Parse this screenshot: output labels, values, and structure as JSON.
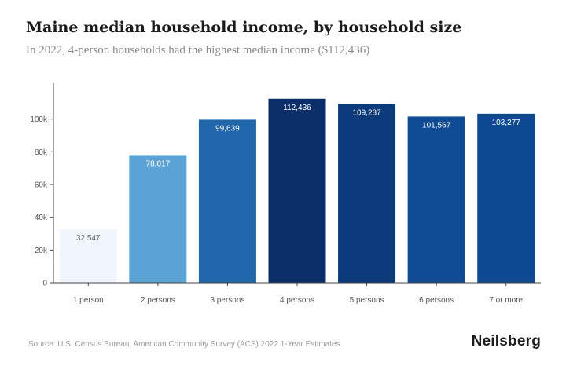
{
  "title": "Maine median household income, by household size",
  "subtitle": "In 2022, 4-person households had the highest median income ($112,436)",
  "source": "Source: U.S. Census Bureau, American Community Survey (ACS) 2022 1-Year Estimates",
  "brand": "Neilsberg",
  "chart_data": {
    "type": "bar",
    "categories": [
      "1 person",
      "2 persons",
      "3 persons",
      "4 persons",
      "5 persons",
      "6 persons",
      "7 or more"
    ],
    "values": [
      32547,
      78017,
      99639,
      112436,
      109287,
      101567,
      103277
    ],
    "value_labels": [
      "32,547",
      "78,017",
      "99,639",
      "112,436",
      "109,287",
      "101,567",
      "103,277"
    ],
    "yticks": [
      0,
      20000,
      40000,
      60000,
      80000,
      100000
    ],
    "ytick_labels": [
      "0",
      "20k",
      "40k",
      "60k",
      "80k",
      "100k"
    ],
    "ylim": [
      0,
      120000
    ],
    "grid": false,
    "colors": [
      "#f1f6fd",
      "#5ba3d4",
      "#1f66aa",
      "#0b2e69",
      "#0c3b7c",
      "#0f4c94",
      "#0e4a92"
    ],
    "label_colors": [
      "#666666",
      "#ffffff",
      "#ffffff",
      "#ffffff",
      "#ffffff",
      "#ffffff",
      "#ffffff"
    ],
    "axis_color": "#444444",
    "tick_label_color": "#555555"
  }
}
